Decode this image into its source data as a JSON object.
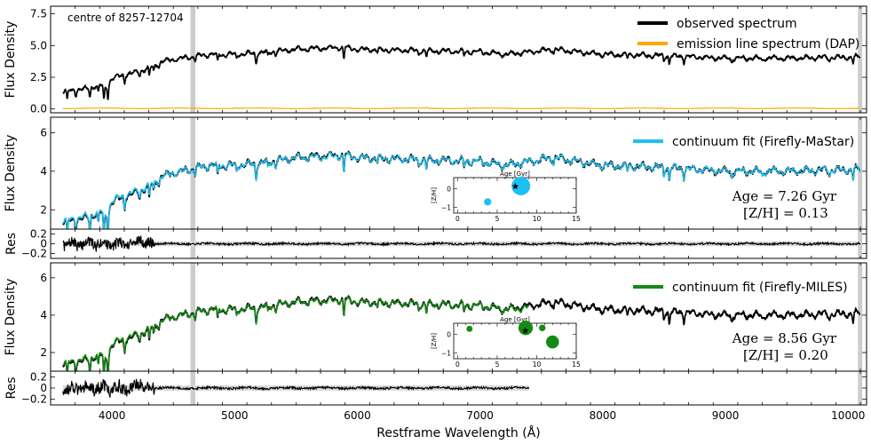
{
  "chart_data": {
    "type": "line",
    "xlabel": "Restframe Wavelength (Å)",
    "xlim": [
      3500,
      10150
    ],
    "x_ticks": [
      4000,
      5000,
      6000,
      7000,
      8000,
      9000,
      10000
    ],
    "masked_regions": [
      [
        4640,
        4680
      ],
      [
        10080,
        10115
      ]
    ],
    "panels": [
      {
        "id": "p1",
        "ylabel": "Flux Density",
        "ylim": [
          -0.3,
          8.1
        ],
        "y_ticks": [
          0.0,
          2.5,
          5.0,
          7.5
        ],
        "y_tick_labels": [
          "0.0",
          "2.5",
          "5.0",
          "7.5"
        ],
        "annotation": "centre of 8257-12704",
        "legend": [
          {
            "label": "observed spectrum",
            "color": "#000000"
          },
          {
            "label": "emission line spectrum (DAP)",
            "color": "#ffa500"
          }
        ],
        "series": [
          {
            "name": "observed spectrum",
            "color": "#000000",
            "xend": 10100,
            "x": [
              3600,
              3800,
              3900,
              3950,
              4000,
              4100,
              4200,
              4300,
              4400,
              4500,
              4650,
              4800,
              5000,
              5200,
              5500,
              5900,
              6000,
              6500,
              7000,
              7200,
              7600,
              8000,
              8500,
              9000,
              9500,
              10100
            ],
            "y": [
              1.4,
              1.6,
              1.9,
              1.7,
              2.4,
              2.7,
              2.9,
              3.2,
              3.7,
              3.9,
              4.1,
              4.3,
              4.3,
              4.4,
              4.7,
              4.85,
              4.7,
              4.6,
              4.5,
              4.3,
              4.7,
              4.3,
              4.2,
              4.0,
              4.0,
              4.1
            ]
          },
          {
            "name": "emission line spectrum (DAP)",
            "color": "#ffa500",
            "xend": 10100,
            "x": [
              3600,
              10100
            ],
            "y": [
              0.05,
              0.05
            ]
          }
        ]
      },
      {
        "id": "p2",
        "ylabel": "Flux Density",
        "ylim": [
          1.0,
          6.8
        ],
        "y_ticks": [
          2,
          4,
          6
        ],
        "y_tick_labels": [
          "2",
          "4",
          "6"
        ],
        "legend": [
          {
            "label": "continuum fit (Firefly-MaStar)",
            "color": "#1ec0f2"
          }
        ],
        "age_text": "Age = 7.26 Gyr",
        "metal_text": "[Z/H] = 0.13",
        "series": [
          {
            "name": "observed spectrum",
            "color": "#000000",
            "xend": 10100,
            "x": [
              3600,
              3800,
              3900,
              3950,
              4000,
              4100,
              4200,
              4300,
              4400,
              4500,
              4650,
              4800,
              5000,
              5200,
              5500,
              5900,
              6000,
              6500,
              7000,
              7200,
              7600,
              8000,
              8500,
              9000,
              9500,
              10100
            ],
            "y": [
              1.4,
              1.6,
              1.9,
              1.7,
              2.4,
              2.7,
              2.9,
              3.2,
              3.7,
              3.9,
              4.1,
              4.3,
              4.3,
              4.4,
              4.7,
              4.85,
              4.7,
              4.6,
              4.5,
              4.3,
              4.7,
              4.3,
              4.2,
              4.0,
              4.0,
              4.1
            ]
          },
          {
            "name": "continuum fit (Firefly-MaStar)",
            "color": "#1ec0f2",
            "xend": 10100,
            "x": [
              3600,
              3800,
              3900,
              3950,
              4000,
              4100,
              4200,
              4300,
              4400,
              4500,
              4650,
              4800,
              5000,
              5200,
              5500,
              5900,
              6000,
              6500,
              7000,
              7200,
              7600,
              8000,
              8500,
              9000,
              9500,
              10100
            ],
            "y": [
              1.45,
              1.65,
              1.95,
              1.75,
              2.45,
              2.75,
              2.95,
              3.25,
              3.7,
              3.9,
              4.1,
              4.3,
              4.3,
              4.4,
              4.7,
              4.8,
              4.7,
              4.6,
              4.5,
              4.3,
              4.7,
              4.3,
              4.2,
              4.0,
              4.0,
              4.1
            ]
          }
        ],
        "inset": {
          "title": "Age [Gyr]",
          "ylabel": "[Z/H]",
          "xlim": [
            -0.5,
            15
          ],
          "ylim": [
            -1.3,
            0.6
          ],
          "x_ticks": [
            0,
            5,
            10,
            15
          ],
          "y_ticks": [
            -1,
            0
          ],
          "points": [
            {
              "age": 8.0,
              "zh": 0.15,
              "weight": 1.0,
              "color": "#1ec0f2"
            },
            {
              "age": 3.8,
              "zh": -0.7,
              "weight": 0.2,
              "color": "#1ec0f2"
            }
          ],
          "star": {
            "age": 7.3,
            "zh": 0.13
          }
        }
      },
      {
        "id": "r2",
        "ylabel": "Res",
        "ylim": [
          -0.3,
          0.3
        ],
        "y_ticks": [
          0.2,
          0.0,
          -0.2
        ],
        "y_tick_labels": [
          "0.2",
          "0",
          "−0.2"
        ],
        "residual_seed": 7,
        "xend": 10100
      },
      {
        "id": "p3",
        "ylabel": "Flux Density",
        "ylim": [
          1.0,
          6.8
        ],
        "y_ticks": [
          2,
          4,
          6
        ],
        "y_tick_labels": [
          "2",
          "4",
          "6"
        ],
        "legend": [
          {
            "label": "continuum fit (Firefly-MILES)",
            "color": "#138a13"
          }
        ],
        "age_text": "Age = 8.56 Gyr",
        "metal_text": "[Z/H] = 0.20",
        "series": [
          {
            "name": "observed spectrum",
            "color": "#000000",
            "xend": 10100,
            "x": [
              3600,
              3800,
              3900,
              3950,
              4000,
              4100,
              4200,
              4300,
              4400,
              4500,
              4650,
              4800,
              5000,
              5200,
              5500,
              5900,
              6000,
              6500,
              7000,
              7200,
              7600,
              8000,
              8500,
              9000,
              9500,
              10100
            ],
            "y": [
              1.4,
              1.6,
              1.9,
              1.7,
              2.4,
              2.7,
              2.9,
              3.2,
              3.7,
              3.9,
              4.1,
              4.3,
              4.3,
              4.4,
              4.7,
              4.85,
              4.7,
              4.6,
              4.5,
              4.3,
              4.7,
              4.3,
              4.2,
              4.0,
              4.0,
              4.1
            ]
          },
          {
            "name": "continuum fit (Firefly-MILES)",
            "color": "#138a13",
            "xend": 7400,
            "x": [
              3600,
              3800,
              3900,
              3950,
              4000,
              4100,
              4200,
              4300,
              4400,
              4500,
              4650,
              4800,
              5000,
              5200,
              5500,
              5900,
              6000,
              6500,
              7000,
              7200,
              7400
            ],
            "y": [
              1.45,
              1.65,
              1.95,
              1.75,
              2.45,
              2.75,
              2.95,
              3.25,
              3.7,
              3.9,
              4.1,
              4.3,
              4.3,
              4.4,
              4.7,
              4.8,
              4.7,
              4.6,
              4.5,
              4.3,
              4.4
            ]
          }
        ],
        "inset": {
          "title": "Age [Gyr]",
          "ylabel": "[Z/H]",
          "xlim": [
            -0.5,
            15
          ],
          "ylim": [
            -1.3,
            0.6
          ],
          "x_ticks": [
            0,
            5,
            10,
            15
          ],
          "y_ticks": [
            -1,
            0
          ],
          "points": [
            {
              "age": 1.5,
              "zh": 0.3,
              "weight": 0.12,
              "color": "#138a13"
            },
            {
              "age": 8.6,
              "zh": 0.35,
              "weight": 0.7,
              "color": "#138a13"
            },
            {
              "age": 10.7,
              "zh": 0.35,
              "weight": 0.15,
              "color": "#138a13"
            },
            {
              "age": 12.0,
              "zh": -0.4,
              "weight": 0.6,
              "color": "#138a13"
            }
          ],
          "star": {
            "age": 8.56,
            "zh": 0.2
          }
        }
      },
      {
        "id": "r3",
        "ylabel": "Res",
        "ylim": [
          -0.3,
          0.3
        ],
        "y_ticks": [
          0.2,
          0.0,
          -0.2
        ],
        "y_tick_labels": [
          "0.2",
          "0",
          "−0.2"
        ],
        "residual_seed": 13,
        "xend": 7400
      }
    ]
  }
}
